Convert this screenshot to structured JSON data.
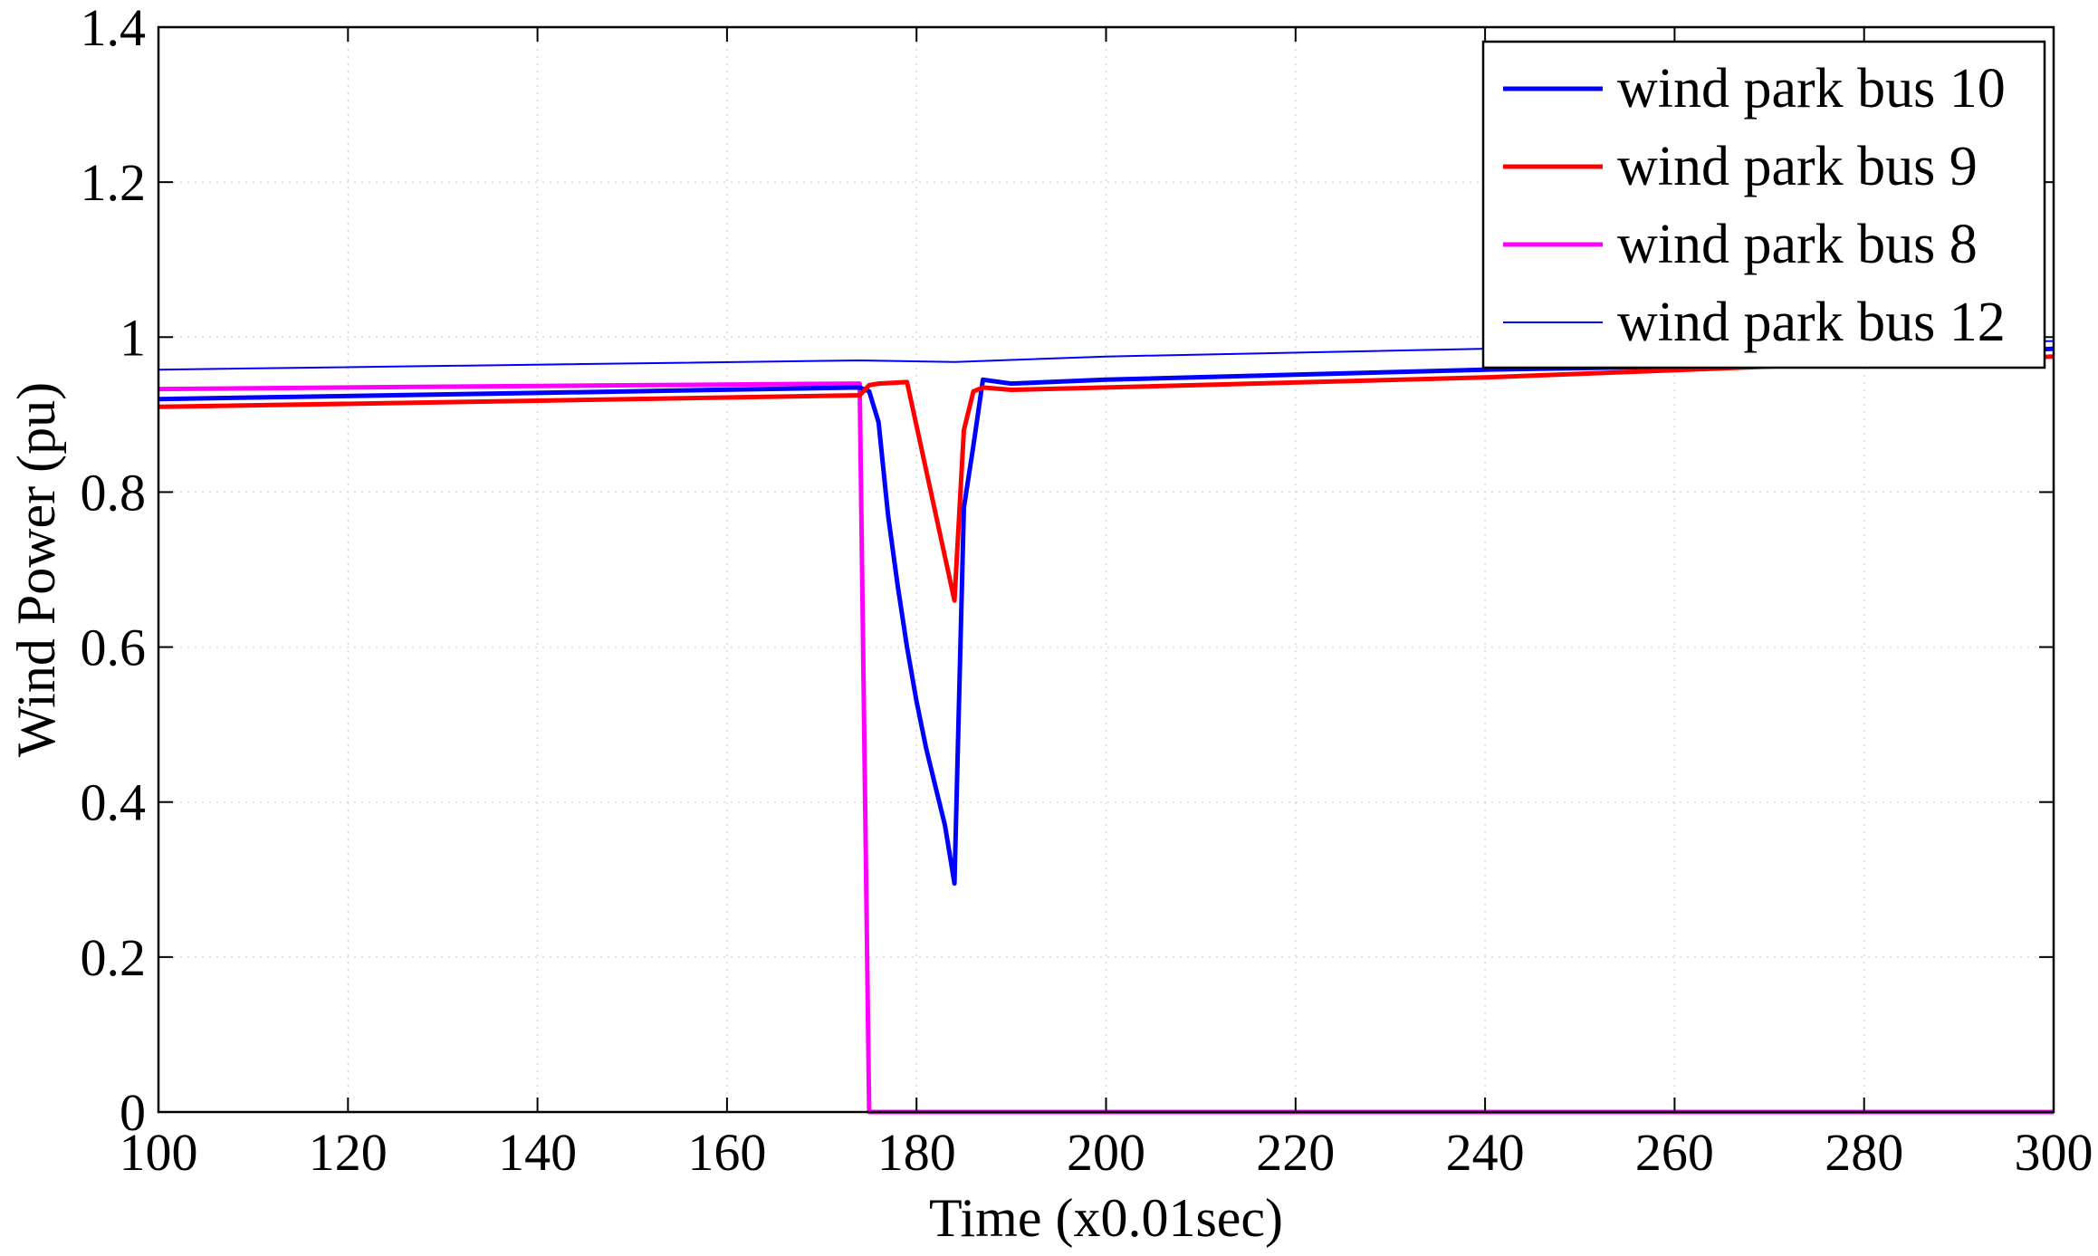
{
  "chart_data": {
    "type": "line",
    "title": "",
    "xlabel": "Time (x0.01sec)",
    "ylabel": "Wind Power (pu)",
    "xlim": [
      100,
      300
    ],
    "ylim": [
      0,
      1.4
    ],
    "xticks": [
      100,
      120,
      140,
      160,
      180,
      200,
      220,
      240,
      260,
      280,
      300
    ],
    "yticks": [
      0,
      0.2,
      0.4,
      0.6,
      0.8,
      1,
      1.2,
      1.4
    ],
    "ytick_labels": [
      "0",
      "0.2",
      "0.4",
      "0.6",
      "0.8",
      "1",
      "1.2",
      "1.4"
    ],
    "grid": true,
    "legend_position": "top-right",
    "series": [
      {
        "name": "wind park bus 10",
        "color": "#0000ff",
        "weight": "thick",
        "x": [
          100,
          140,
          174,
          175,
          176,
          177,
          178,
          179,
          180,
          181,
          182,
          183,
          184,
          185,
          186,
          187,
          190,
          200,
          240,
          260,
          300
        ],
        "y": [
          0.92,
          0.928,
          0.935,
          0.93,
          0.89,
          0.77,
          0.68,
          0.6,
          0.53,
          0.47,
          0.42,
          0.37,
          0.295,
          0.78,
          0.86,
          0.945,
          0.94,
          0.945,
          0.958,
          0.962,
          0.985
        ]
      },
      {
        "name": "wind park bus 9",
        "color": "#ff0000",
        "weight": "thick",
        "x": [
          100,
          140,
          174,
          175,
          176,
          179,
          184,
          185,
          186,
          187,
          190,
          200,
          240,
          270,
          300
        ],
        "y": [
          0.91,
          0.918,
          0.925,
          0.938,
          0.94,
          0.942,
          0.66,
          0.88,
          0.93,
          0.935,
          0.932,
          0.935,
          0.948,
          0.962,
          0.975
        ]
      },
      {
        "name": "wind park bus 8",
        "color": "#ff00ff",
        "weight": "thick",
        "x": [
          100,
          140,
          174,
          175,
          300
        ],
        "y": [
          0.933,
          0.937,
          0.94,
          0.0,
          0.0
        ]
      },
      {
        "name": "wind park bus 12",
        "color": "#0000ff",
        "weight": "thin",
        "x": [
          100,
          174,
          184,
          200,
          240,
          300
        ],
        "y": [
          0.958,
          0.97,
          0.968,
          0.975,
          0.985,
          0.995
        ]
      }
    ]
  }
}
